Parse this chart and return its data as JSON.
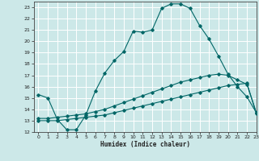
{
  "title": "",
  "xlabel": "Humidex (Indice chaleur)",
  "bg_color": "#cce8e8",
  "grid_color": "#ffffff",
  "line_color": "#006666",
  "xlim": [
    -0.5,
    23
  ],
  "ylim": [
    12,
    23.5
  ],
  "xticks": [
    0,
    1,
    2,
    3,
    4,
    5,
    6,
    7,
    8,
    9,
    10,
    11,
    12,
    13,
    14,
    15,
    16,
    17,
    18,
    19,
    20,
    21,
    22,
    23
  ],
  "yticks": [
    12,
    13,
    14,
    15,
    16,
    17,
    18,
    19,
    20,
    21,
    22,
    23
  ],
  "line1_x": [
    0,
    1,
    2,
    3,
    4,
    5,
    6,
    7,
    8,
    9,
    10,
    11,
    12,
    13,
    14,
    15,
    16,
    17,
    18,
    19,
    20,
    21,
    22,
    23
  ],
  "line1_y": [
    15.3,
    15.0,
    13.1,
    12.2,
    12.2,
    13.5,
    15.6,
    17.2,
    18.3,
    19.1,
    20.9,
    20.8,
    21.0,
    22.9,
    23.3,
    23.3,
    22.9,
    21.4,
    20.2,
    18.7,
    17.1,
    16.0,
    15.1,
    13.7
  ],
  "line2_x": [
    0,
    1,
    2,
    3,
    4,
    5,
    6,
    7,
    8,
    9,
    10,
    11,
    12,
    13,
    14,
    15,
    16,
    17,
    18,
    19,
    20,
    21,
    22,
    23
  ],
  "line2_y": [
    13.2,
    13.2,
    13.3,
    13.4,
    13.5,
    13.6,
    13.8,
    14.0,
    14.3,
    14.6,
    14.9,
    15.2,
    15.5,
    15.8,
    16.1,
    16.4,
    16.6,
    16.8,
    17.0,
    17.1,
    17.0,
    16.6,
    16.2,
    13.7
  ],
  "line3_x": [
    0,
    1,
    2,
    3,
    4,
    5,
    6,
    7,
    8,
    9,
    10,
    11,
    12,
    13,
    14,
    15,
    16,
    17,
    18,
    19,
    20,
    21,
    22,
    23
  ],
  "line3_y": [
    13.0,
    13.0,
    13.0,
    13.1,
    13.2,
    13.3,
    13.4,
    13.5,
    13.7,
    13.9,
    14.1,
    14.3,
    14.5,
    14.7,
    14.9,
    15.1,
    15.3,
    15.5,
    15.7,
    15.9,
    16.1,
    16.2,
    16.3,
    13.6
  ]
}
